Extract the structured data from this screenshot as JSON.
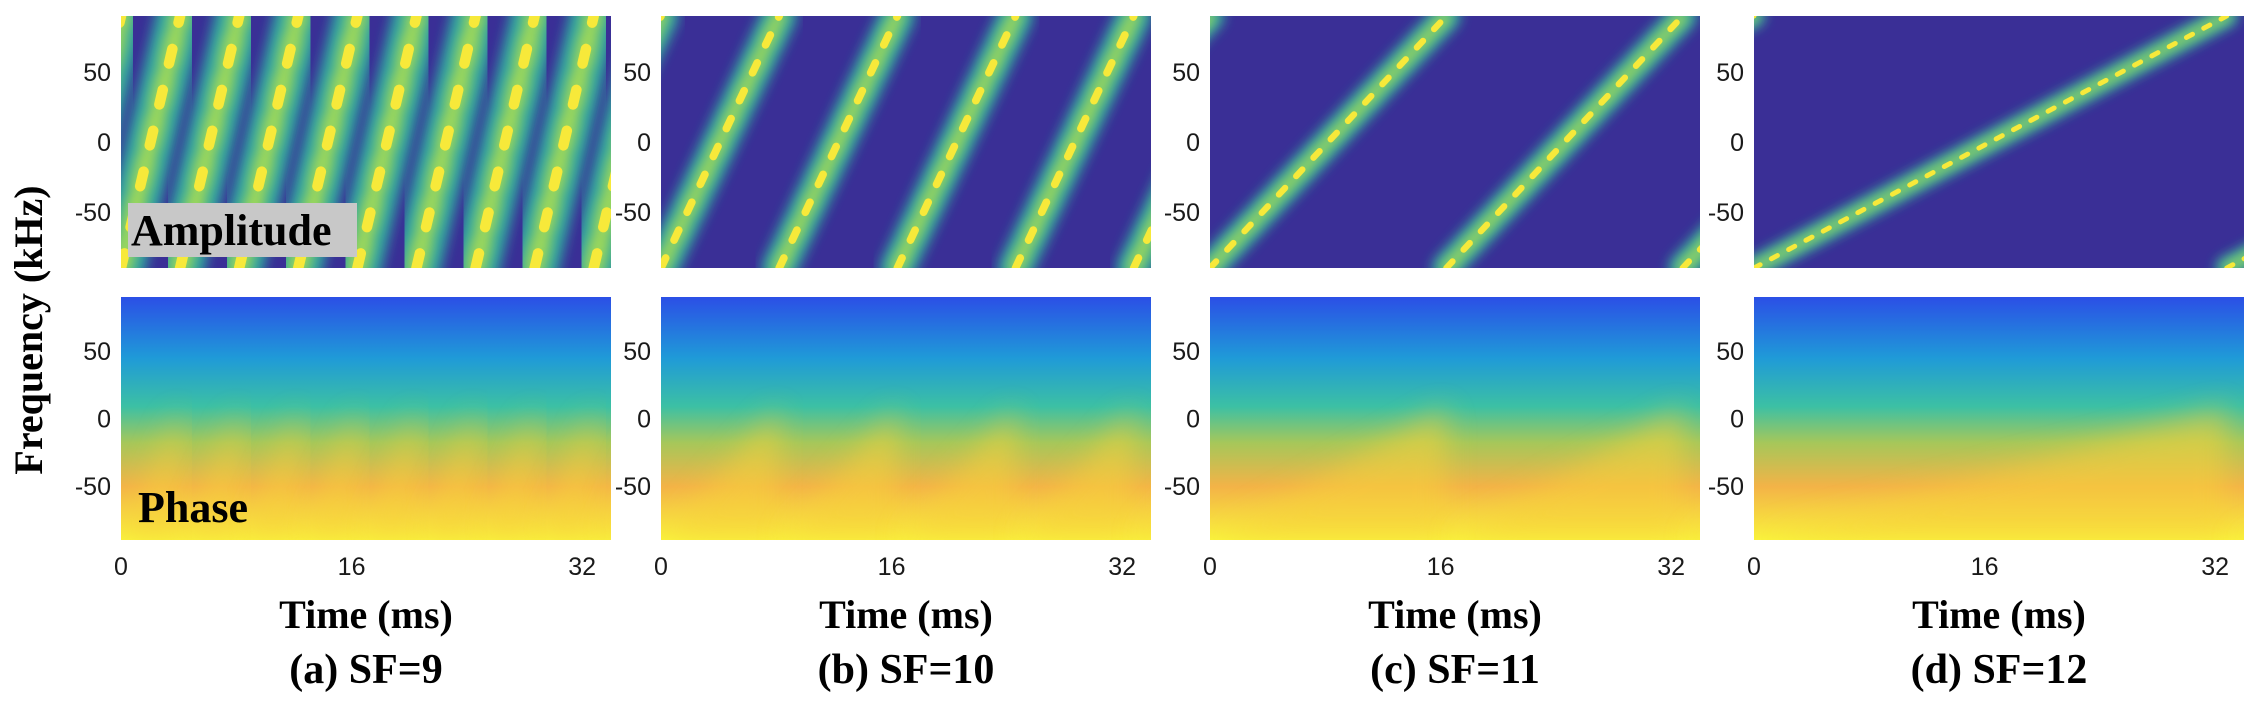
{
  "figure": {
    "ylabel": "Frequency (kHz)",
    "xlabel": "Time (ms)",
    "row_labels": {
      "amplitude": "Amplitude",
      "phase": "Phase"
    }
  },
  "colors": {
    "background_low": "#3a2f96",
    "background_mid": "#2fb3a3",
    "background_high": "#f7e93a",
    "label_box": "#c8c8c8"
  },
  "chart_data": [
    {
      "type": "heatmap",
      "id": "a-amplitude",
      "row": "Amplitude",
      "caption": "(a) SF=9",
      "sf": 9,
      "xlabel": "Time (ms)",
      "ylabel": "Frequency (kHz)",
      "xlim": [
        0,
        34
      ],
      "ylim": [
        -90,
        90
      ],
      "xticks": [
        0,
        16,
        32
      ],
      "yticks": [
        50,
        0,
        -50
      ],
      "chirp": {
        "start_freq_khz": -90,
        "period_ms": 4.1,
        "num_chirps": 8.3,
        "wraps": true
      }
    },
    {
      "type": "heatmap",
      "id": "b-amplitude",
      "row": "Amplitude",
      "caption": "(b) SF=10",
      "sf": 10,
      "xlabel": "Time (ms)",
      "ylabel": "Frequency (kHz)",
      "xlim": [
        0,
        34
      ],
      "ylim": [
        -90,
        90
      ],
      "xticks": [
        0,
        16,
        32
      ],
      "yticks": [
        50,
        0,
        -50
      ],
      "chirp": {
        "start_freq_khz": -90,
        "period_ms": 8.2,
        "num_chirps": 4.1,
        "wraps": true
      }
    },
    {
      "type": "heatmap",
      "id": "c-amplitude",
      "row": "Amplitude",
      "caption": "(c) SF=11",
      "sf": 11,
      "xlabel": "Time (ms)",
      "ylabel": "Frequency (kHz)",
      "xlim": [
        0,
        34
      ],
      "ylim": [
        -90,
        90
      ],
      "xticks": [
        0,
        16,
        32
      ],
      "yticks": [
        50,
        0,
        -50
      ],
      "chirp": {
        "start_freq_khz": -90,
        "period_ms": 16.4,
        "num_chirps": 2.1,
        "wraps": true
      }
    },
    {
      "type": "heatmap",
      "id": "d-amplitude",
      "row": "Amplitude",
      "caption": "(d) SF=12",
      "sf": 12,
      "xlabel": "Time (ms)",
      "ylabel": "Frequency (kHz)",
      "xlim": [
        0,
        34
      ],
      "ylim": [
        -90,
        90
      ],
      "xticks": [
        0,
        16,
        32
      ],
      "yticks": [
        50,
        0,
        -50
      ],
      "chirp": {
        "start_freq_khz": -90,
        "period_ms": 32.8,
        "num_chirps": 1.0,
        "wraps": false
      }
    },
    {
      "type": "heatmap",
      "id": "a-phase",
      "row": "Phase",
      "sf": 9,
      "xlim": [
        0,
        34
      ],
      "ylim": [
        -90,
        90
      ],
      "xticks": [
        0,
        16,
        32
      ],
      "yticks": [
        50,
        0,
        -50
      ],
      "pattern": "sawtooth-phase",
      "period_ms": 4.1
    },
    {
      "type": "heatmap",
      "id": "b-phase",
      "row": "Phase",
      "sf": 10,
      "xlim": [
        0,
        34
      ],
      "ylim": [
        -90,
        90
      ],
      "xticks": [
        0,
        16,
        32
      ],
      "yticks": [
        50,
        0,
        -50
      ],
      "pattern": "sawtooth-phase",
      "period_ms": 8.2
    },
    {
      "type": "heatmap",
      "id": "c-phase",
      "row": "Phase",
      "sf": 11,
      "xlim": [
        0,
        34
      ],
      "ylim": [
        -90,
        90
      ],
      "xticks": [
        0,
        16,
        32
      ],
      "yticks": [
        50,
        0,
        -50
      ],
      "pattern": "sawtooth-phase",
      "period_ms": 16.4
    },
    {
      "type": "heatmap",
      "id": "d-phase",
      "row": "Phase",
      "sf": 12,
      "xlim": [
        0,
        34
      ],
      "ylim": [
        -90,
        90
      ],
      "xticks": [
        0,
        16,
        32
      ],
      "yticks": [
        50,
        0,
        -50
      ],
      "pattern": "sawtooth-phase",
      "period_ms": 32.8
    }
  ]
}
